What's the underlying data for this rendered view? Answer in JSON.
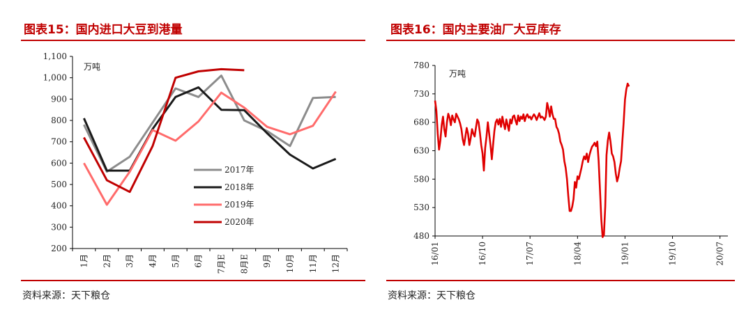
{
  "panels": {
    "left": {
      "title": "图表15：国内进口大豆到港量",
      "source": "资料来源：天下粮仓"
    },
    "right": {
      "title": "图表16：国内主要油厂大豆库存",
      "source": "资料来源：天下粮仓"
    }
  },
  "chart_data": [
    {
      "type": "line",
      "title": "图表15：国内进口大豆到港量",
      "unit_label": "万吨",
      "categories": [
        "1月",
        "2月",
        "3月",
        "4月",
        "5月",
        "6月",
        "7月E",
        "8月E",
        "9月",
        "10月",
        "11月",
        "12月"
      ],
      "ylim": [
        200,
        1100
      ],
      "yticks": [
        "200",
        "300",
        "400",
        "500",
        "600",
        "700",
        "800",
        "900",
        "1,000",
        "1,100"
      ],
      "ytick_values": [
        200,
        300,
        400,
        500,
        600,
        700,
        800,
        900,
        1000,
        1100
      ],
      "grid": false,
      "legend_position": "center-left",
      "series": [
        {
          "name": "2017年",
          "color": "#8c8c8c",
          "values": [
            780,
            560,
            630,
            790,
            950,
            910,
            1010,
            800,
            750,
            680,
            905,
            910
          ]
        },
        {
          "name": "2018年",
          "color": "#1a1a1a",
          "values": [
            810,
            565,
            565,
            760,
            910,
            955,
            850,
            848,
            740,
            640,
            575,
            620
          ]
        },
        {
          "name": "2019年",
          "color": "#ff6b6b",
          "values": [
            600,
            405,
            560,
            755,
            705,
            795,
            930,
            860,
            770,
            735,
            775,
            935
          ]
        },
        {
          "name": "2020年",
          "color": "#c00000",
          "values": [
            720,
            520,
            465,
            680,
            1000,
            1030,
            1040,
            1035,
            null,
            null,
            null,
            null
          ]
        }
      ]
    },
    {
      "type": "line",
      "title": "图表16：国内主要油厂大豆库存",
      "unit_label": "万吨",
      "x_start": "2016-01",
      "x_step_months": 0.25,
      "xticks": [
        "16/01",
        "16/10",
        "17/07",
        "18/04",
        "19/01",
        "19/10",
        "20/07"
      ],
      "xtick_values": [
        "2016-01",
        "2016-10",
        "2017-07",
        "2018-04",
        "2019-01",
        "2019-10",
        "2020-07"
      ],
      "ylim": [
        480,
        780
      ],
      "yticks": [
        "480",
        "530",
        "580",
        "630",
        "680",
        "730",
        "780"
      ],
      "ytick_values": [
        480,
        530,
        580,
        630,
        680,
        730,
        780
      ],
      "grid": false,
      "series": [
        {
          "name": "",
          "color": "#e00000",
          "values": [
            718,
            700,
            660,
            632,
            648,
            675,
            690,
            668,
            655,
            680,
            695,
            688,
            675,
            692,
            685,
            680,
            695,
            690,
            685,
            678,
            668,
            650,
            640,
            655,
            670,
            660,
            640,
            652,
            668,
            660,
            655,
            670,
            685,
            680,
            662,
            640,
            625,
            595,
            635,
            655,
            680,
            660,
            640,
            615,
            640,
            665,
            680,
            685,
            676,
            686,
            672,
            690,
            678,
            668,
            685,
            675,
            665,
            685,
            678,
            690,
            692,
            683,
            676,
            692,
            682,
            690,
            686,
            694,
            682,
            690,
            694,
            688,
            690,
            685,
            690,
            694,
            690,
            684,
            690,
            696,
            688,
            690,
            688,
            684,
            690,
            714,
            704,
            690,
            708,
            694,
            686,
            686,
            672,
            668,
            660,
            646,
            640,
            632,
            612,
            600,
            580,
            550,
            524,
            524,
            532,
            545,
            575,
            565,
            585,
            580,
            590,
            600,
            612,
            620,
            615,
            625,
            610,
            622,
            630,
            637,
            640,
            644,
            638,
            646,
            612,
            562,
            510,
            478,
            482,
            532,
            622,
            648,
            662,
            646,
            625,
            620,
            610,
            590,
            576,
            585,
            600,
            612,
            646,
            680,
            720,
            738,
            748,
            743
          ]
        }
      ]
    }
  ]
}
